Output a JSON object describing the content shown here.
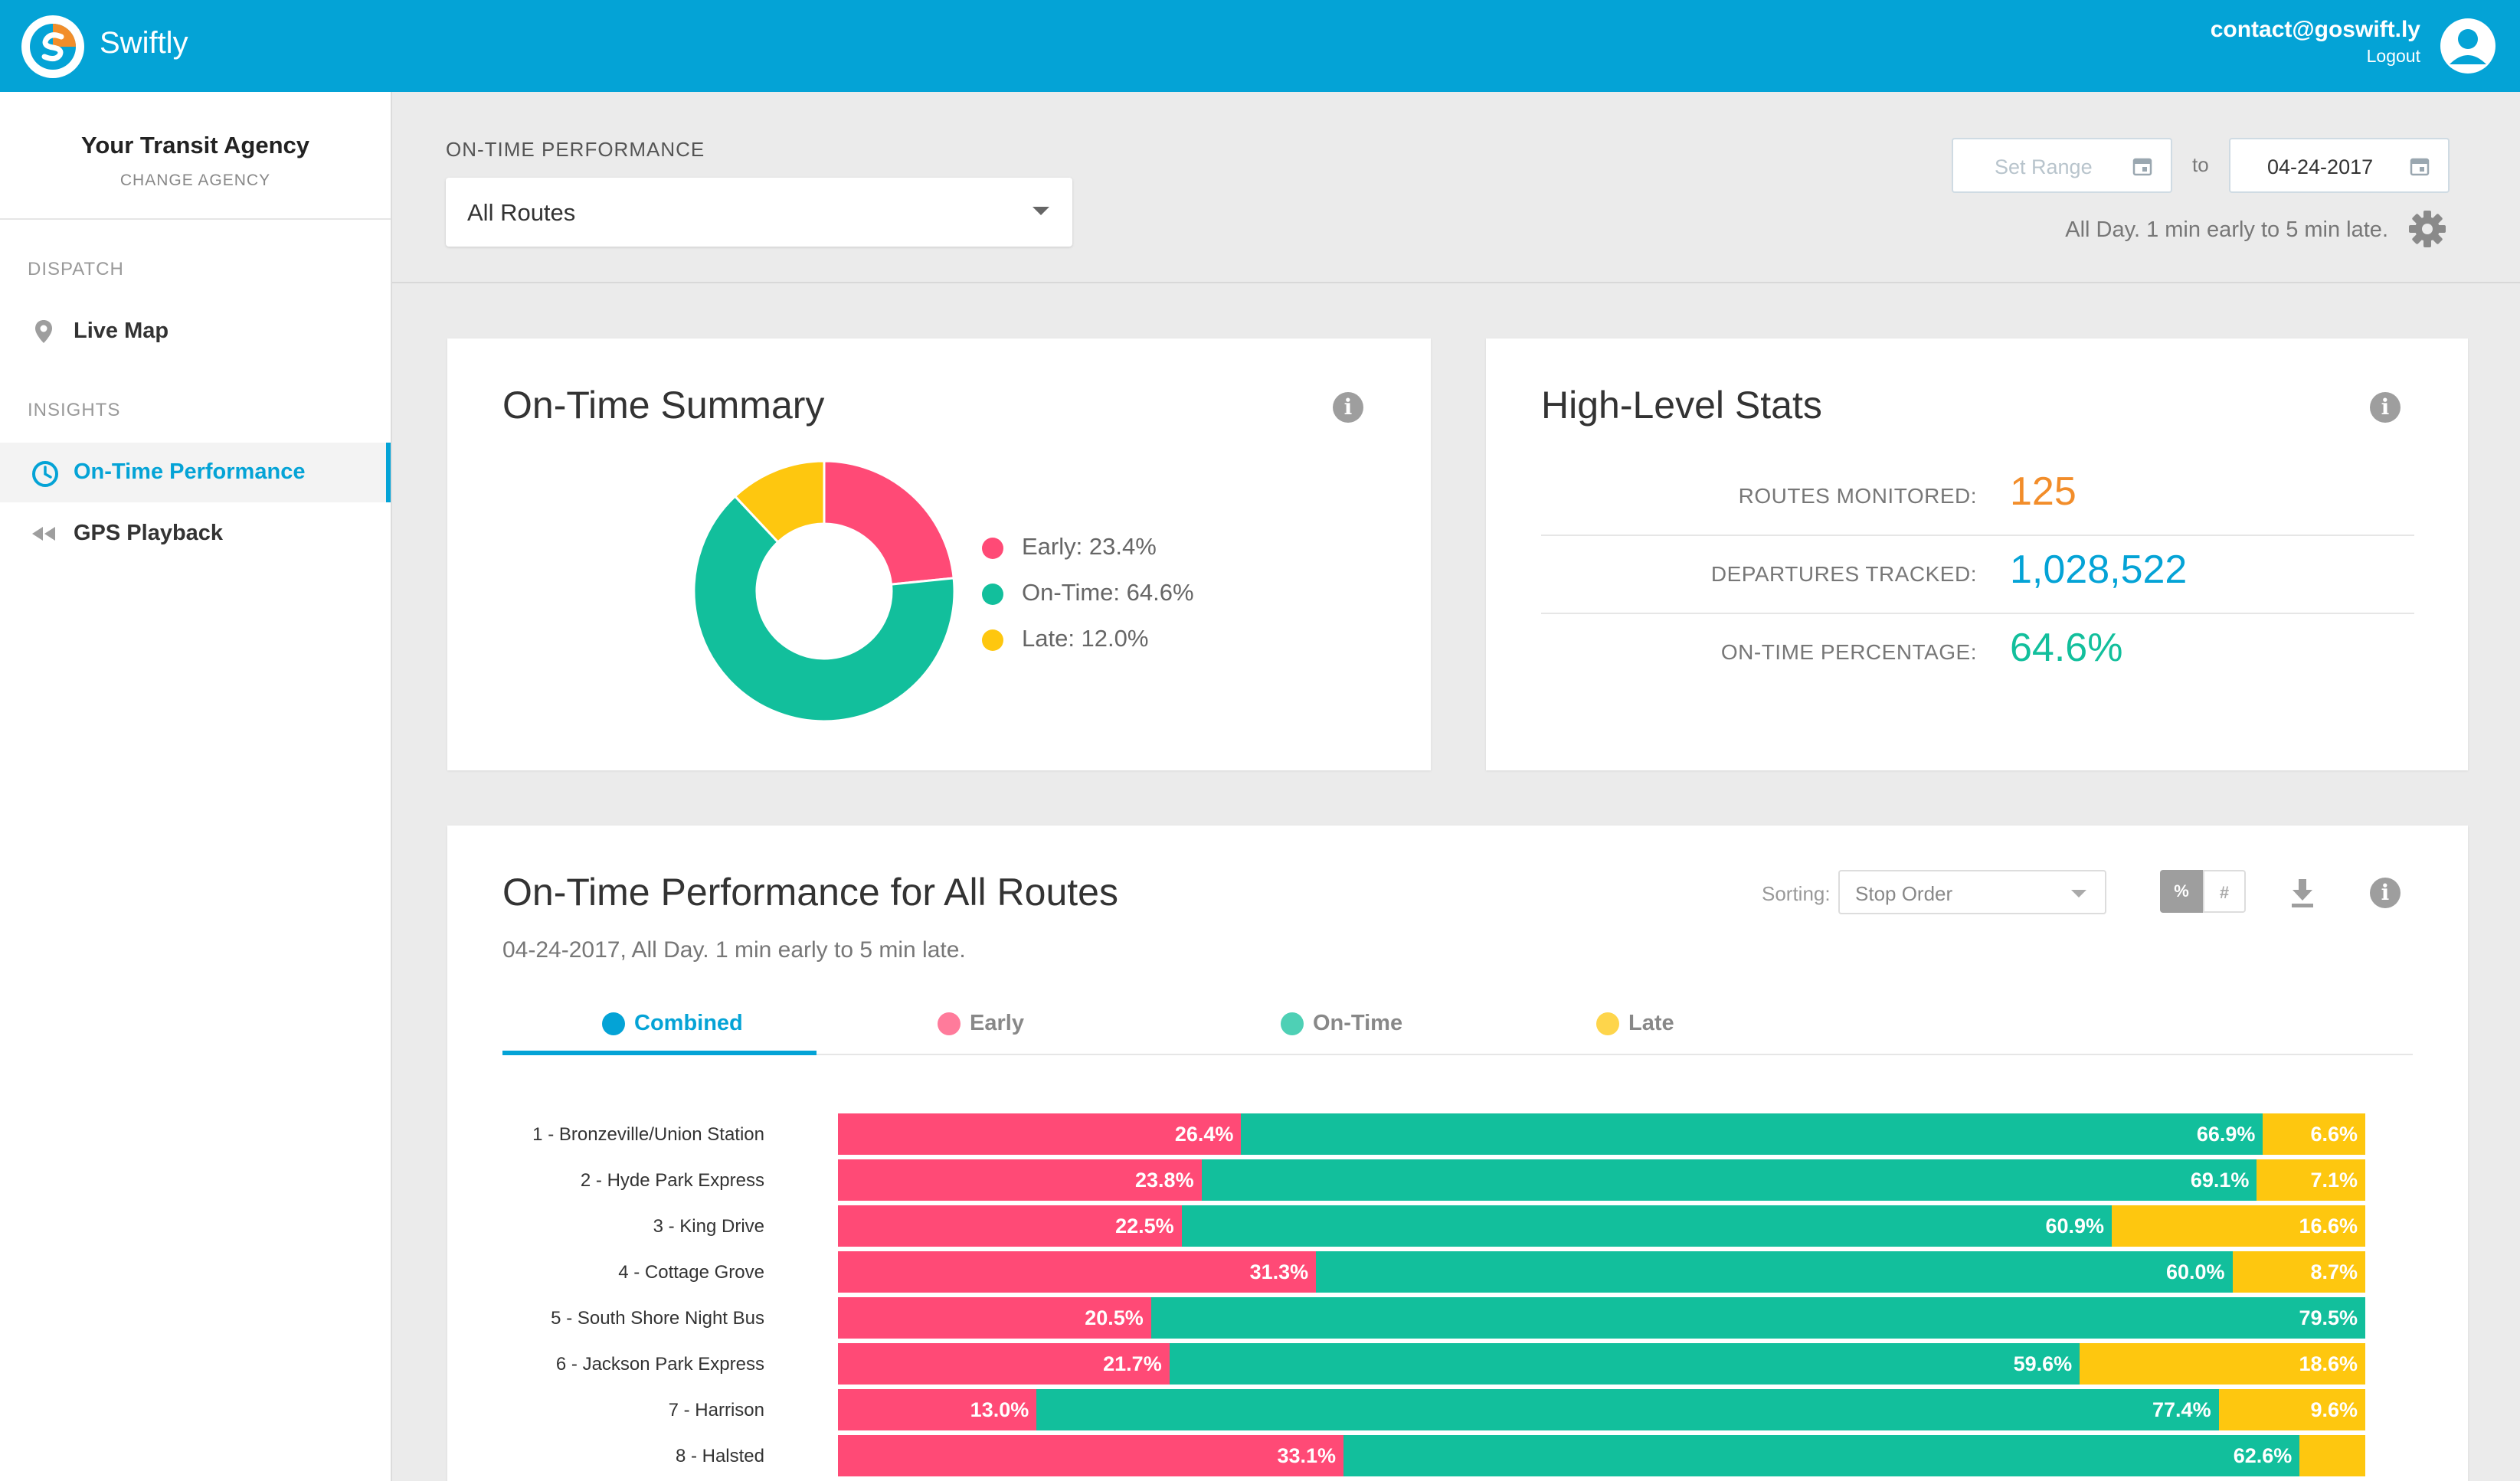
{
  "app": {
    "brand": "Swiftly",
    "user_email": "contact@goswift.ly",
    "logout_label": "Logout"
  },
  "sidebar": {
    "agency_name": "Your Transit Agency",
    "change_agency": "CHANGE AGENCY",
    "sections": [
      {
        "label": "DISPATCH",
        "items": [
          {
            "label": "Live Map",
            "icon": "location-pin-icon"
          }
        ]
      },
      {
        "label": "INSIGHTS",
        "items": [
          {
            "label": "On-Time Performance",
            "icon": "clock-icon",
            "active": true
          },
          {
            "label": "GPS Playback",
            "icon": "rewind-icon"
          }
        ]
      }
    ]
  },
  "header": {
    "filter_label": "ON-TIME PERFORMANCE",
    "route_select_value": "All Routes",
    "start_date_placeholder": "Set Range",
    "to_label": "to",
    "end_date": "04-24-2017",
    "range_description": "All Day. 1 min early to 5 min late."
  },
  "summary": {
    "title": "On-Time Summary",
    "legend": [
      {
        "label": "Early: 23.4%",
        "color": "#ff4a76"
      },
      {
        "label": "On-Time: 64.6%",
        "color": "#12bf9c"
      },
      {
        "label": "Late: 12.0%",
        "color": "#fec70f"
      }
    ]
  },
  "stats": {
    "title": "High-Level Stats",
    "rows": [
      {
        "label": "ROUTES MONITORED:",
        "value": "125",
        "color": "#f28d2a"
      },
      {
        "label": "DEPARTURES TRACKED:",
        "value": "1,028,522",
        "color": "#04a3d6"
      },
      {
        "label": "ON-TIME PERCENTAGE:",
        "value": "64.6%",
        "color": "#12bf9c"
      }
    ]
  },
  "performance": {
    "title": "On-Time Performance for All Routes",
    "subtitle": "04-24-2017, All Day. 1 min early to 5 min late.",
    "sorting_label": "Sorting:",
    "sorting_value": "Stop Order",
    "toggle_percent": "%",
    "toggle_count": "#",
    "tabs": [
      {
        "label": "Combined",
        "color": "#04a3d6",
        "active": true
      },
      {
        "label": "Early",
        "color": "#ff7b9b"
      },
      {
        "label": "On-Time",
        "color": "#4ed0b5"
      },
      {
        "label": "Late",
        "color": "#fed54b"
      }
    ]
  },
  "chart_data": {
    "type": "bar",
    "orientation": "horizontal",
    "stacked": true,
    "categories": [
      "1 - Bronzeville/Union Station",
      "2 - Hyde Park Express",
      "3 - King Drive",
      "4 - Cottage Grove",
      "5 - South Shore Night Bus",
      "6 - Jackson Park Express",
      "7 - Harrison",
      "8 - Halsted"
    ],
    "series": [
      {
        "name": "Early",
        "color": "#ff4a76",
        "values": [
          26.4,
          23.8,
          22.5,
          31.3,
          20.5,
          21.7,
          13.0,
          33.1
        ],
        "labels": [
          "26.4%",
          "23.8%",
          "22.5%",
          "31.3%",
          "20.5%",
          "21.7%",
          "13.0%",
          "33.1%"
        ]
      },
      {
        "name": "On-Time",
        "color": "#12bf9c",
        "values": [
          66.9,
          69.1,
          60.9,
          60.0,
          79.5,
          59.6,
          77.4,
          62.6
        ],
        "labels": [
          "66.9%",
          "69.1%",
          "60.9%",
          "60.0%",
          "79.5%",
          "59.6%",
          "77.4%",
          "62.6%"
        ]
      },
      {
        "name": "Late",
        "color": "#fec70f",
        "values": [
          6.6,
          7.1,
          16.6,
          8.7,
          0,
          18.6,
          9.6,
          4.3
        ],
        "labels": [
          "6.6%",
          "7.1%",
          "16.6%",
          "8.7%",
          "",
          "18.6%",
          "9.6%",
          ""
        ]
      }
    ],
    "donut": {
      "values": [
        23.4,
        64.6,
        12.0
      ],
      "colors": [
        "#ff4a76",
        "#12bf9c",
        "#fec70f"
      ]
    }
  }
}
